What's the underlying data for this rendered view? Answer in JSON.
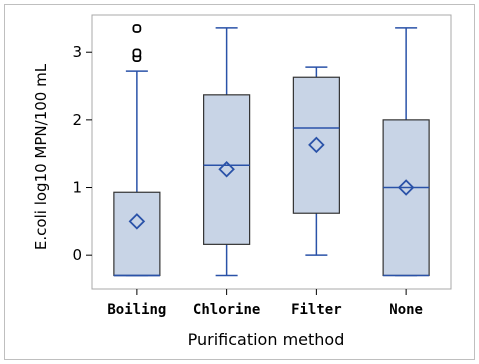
{
  "chart_data": {
    "type": "box",
    "xlabel": "Purification method",
    "ylabel": "E.coli log10 MPN/100 mL",
    "categories": [
      "Boiling",
      "Chlorine",
      "Filter",
      "None"
    ],
    "ylim": [
      -0.5,
      3.55
    ],
    "yticks": [
      0,
      1,
      2,
      3
    ],
    "tick_labels": [
      "0",
      "1",
      "2",
      "3"
    ],
    "grid": false,
    "boxes": [
      {
        "category": "Boiling",
        "whisker_low": -0.3,
        "q1": -0.3,
        "median": -0.3,
        "q3": 0.93,
        "whisker_high": 2.72,
        "mean": 0.5,
        "outliers": [
          2.92,
          2.99,
          3.35
        ]
      },
      {
        "category": "Chlorine",
        "whisker_low": -0.3,
        "q1": 0.16,
        "median": 1.33,
        "q3": 2.37,
        "whisker_high": 3.36,
        "mean": 1.27,
        "outliers": []
      },
      {
        "category": "Filter",
        "whisker_low": 0.0,
        "q1": 0.62,
        "median": 1.88,
        "q3": 2.63,
        "whisker_high": 2.78,
        "mean": 1.63,
        "outliers": []
      },
      {
        "category": "None",
        "whisker_low": -0.3,
        "q1": -0.3,
        "median": 1.0,
        "q3": 2.0,
        "whisker_high": 3.36,
        "mean": 1.0,
        "outliers": []
      }
    ],
    "colors": {
      "box_fill": "#c8d4e6",
      "box_edge": "#333333",
      "line": "#2a52a8",
      "frame": "#a8a8a8",
      "outer_border": "#bfbfbf"
    }
  }
}
